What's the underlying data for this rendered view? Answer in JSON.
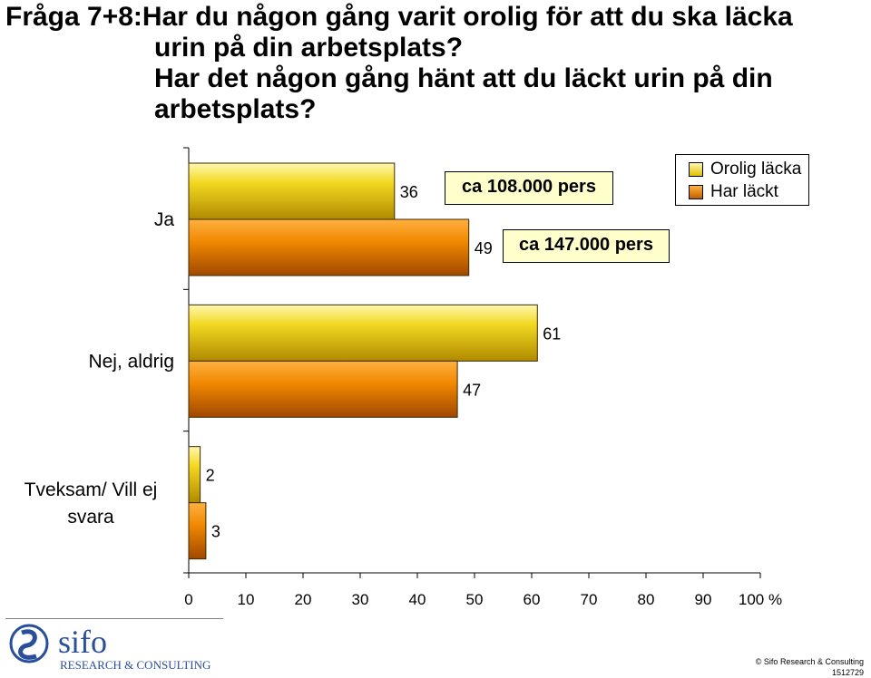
{
  "title": {
    "line1": "Fråga 7+8:Har du någon gång varit orolig för att du ska läcka",
    "line2": "urin på din arbetsplats?",
    "line3": "Har det någon gång hänt att du läckt urin på din",
    "line4": "arbetsplats?"
  },
  "chart_data": {
    "type": "bar",
    "orientation": "horizontal",
    "categories": [
      "Ja",
      "Nej, aldrig",
      "Tveksam/ Vill ej svara"
    ],
    "series": [
      {
        "name": "Orolig läcka",
        "values": [
          36,
          61,
          2
        ],
        "color": "#e8c800"
      },
      {
        "name": "Har läckt",
        "values": [
          49,
          47,
          3
        ],
        "color": "#e07800"
      }
    ],
    "xlim": [
      0,
      100
    ],
    "xticks": [
      0,
      10,
      20,
      30,
      40,
      50,
      60,
      70,
      80,
      90,
      100
    ],
    "xunit": "%",
    "legend": "top-right",
    "annotations": [
      "ca 108.000 pers",
      "ca 147.000 pers"
    ]
  },
  "footer": {
    "logo_text": "sifo",
    "logo_sub": "RESEARCH & CONSULTING",
    "copyright": "© Sifo Research & Consulting",
    "code": "1512729"
  }
}
